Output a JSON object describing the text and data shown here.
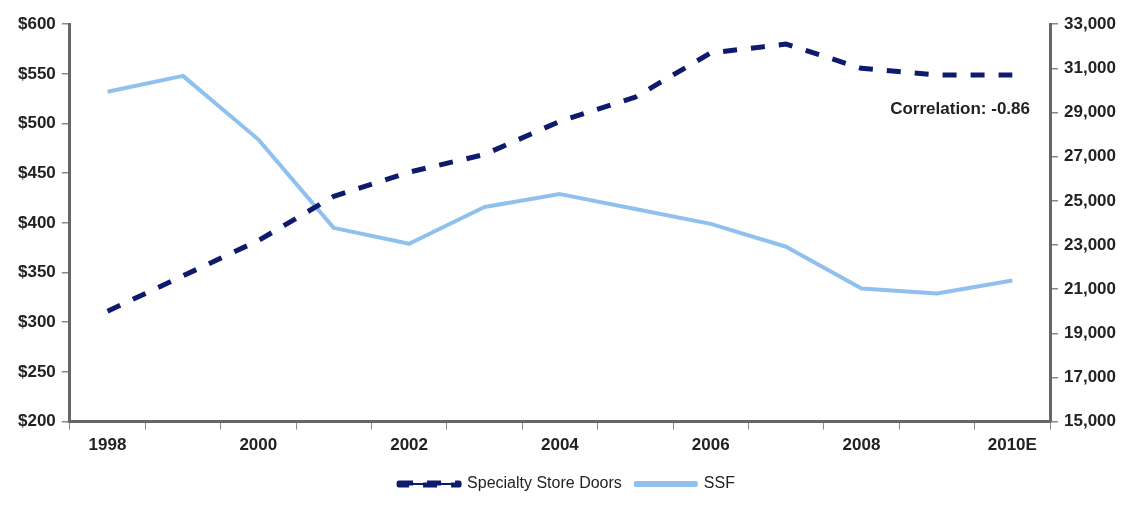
{
  "chart_data": {
    "type": "line",
    "categories": [
      "1998",
      null,
      "2000",
      null,
      "2002",
      null,
      "2004",
      null,
      "2006",
      null,
      "2008",
      null,
      "2010E"
    ],
    "series": [
      {
        "name": "Specialty Store Doors",
        "color": "#0d1a6e",
        "axis": "y2",
        "line_style": "dashed",
        "values": [
          20000,
          21600,
          23200,
          25200,
          26300,
          27100,
          28600,
          29700,
          31700,
          32100,
          31000,
          30700,
          30700
        ]
      },
      {
        "name": "SSF",
        "color": "#8fc0ee",
        "axis": "y",
        "line_style": "solid",
        "values": [
          532,
          548,
          484,
          395,
          379,
          416,
          429,
          414,
          399,
          376,
          334,
          329,
          342
        ]
      }
    ],
    "ylim": [
      200,
      600
    ],
    "yticks": [
      {
        "value": 200,
        "label": "$200"
      },
      {
        "value": 250,
        "label": "$250"
      },
      {
        "value": 300,
        "label": "$300"
      },
      {
        "value": 350,
        "label": "$350"
      },
      {
        "value": 400,
        "label": "$400"
      },
      {
        "value": 450,
        "label": "$450"
      },
      {
        "value": 500,
        "label": "$500"
      },
      {
        "value": 550,
        "label": "$550"
      },
      {
        "value": 600,
        "label": "$600"
      }
    ],
    "y2lim": [
      15000,
      33000
    ],
    "y2ticks": [
      {
        "value": 15000,
        "label": "15,000"
      },
      {
        "value": 17000,
        "label": "17,000"
      },
      {
        "value": 19000,
        "label": "19,000"
      },
      {
        "value": 21000,
        "label": "21,000"
      },
      {
        "value": 23000,
        "label": "23,000"
      },
      {
        "value": 25000,
        "label": "25,000"
      },
      {
        "value": 27000,
        "label": "27,000"
      },
      {
        "value": 29000,
        "label": "29,000"
      },
      {
        "value": 31000,
        "label": "31,000"
      },
      {
        "value": 33000,
        "label": "33,000"
      }
    ],
    "annotations": [
      "Correlation: -0.86"
    ],
    "marker": "none",
    "grid": false,
    "legend": "bottom"
  }
}
